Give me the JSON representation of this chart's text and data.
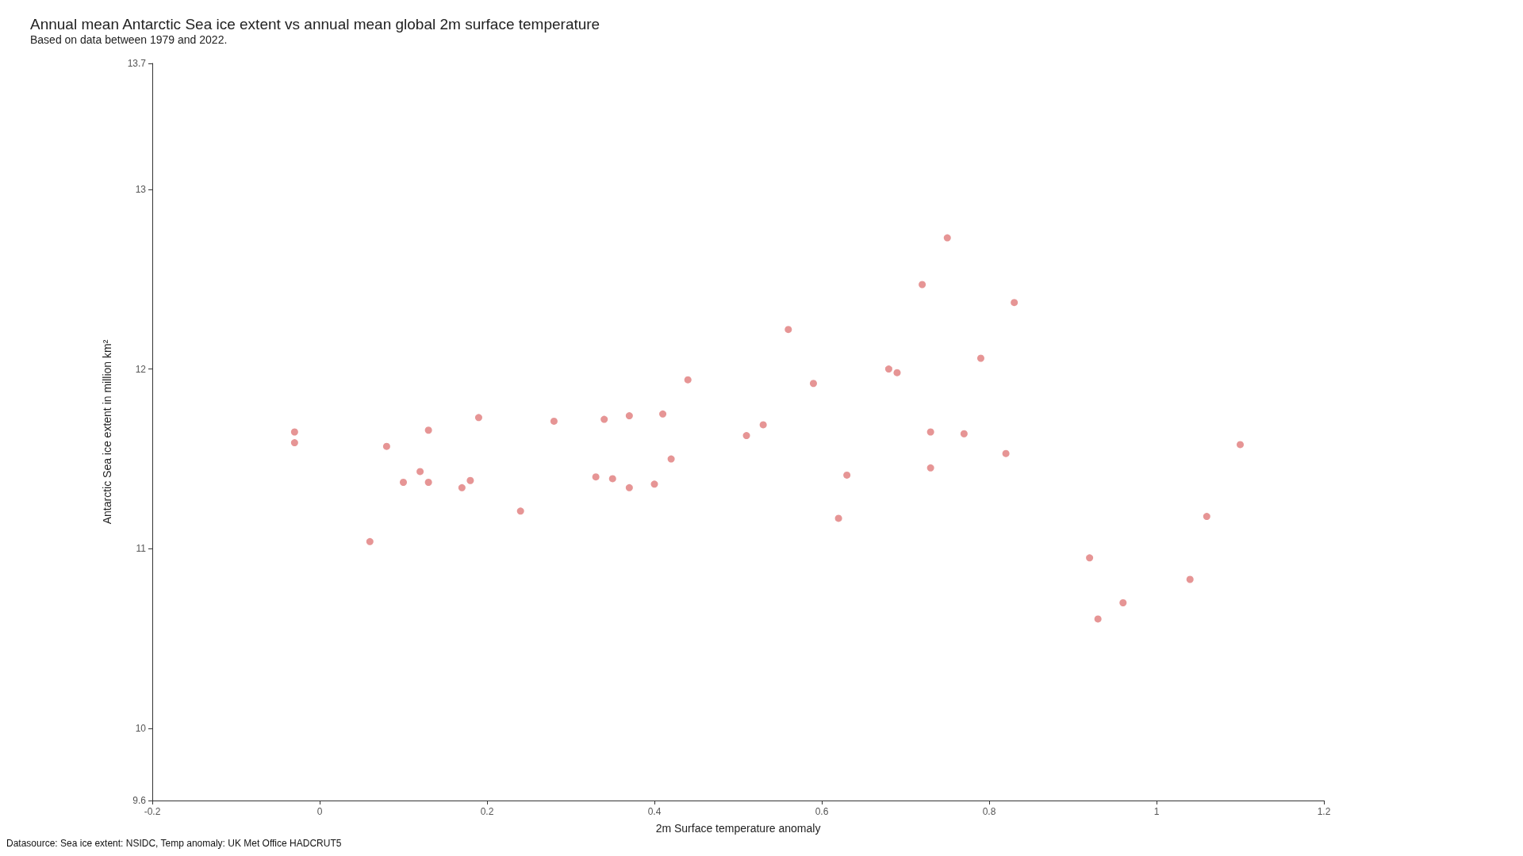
{
  "chart_data": {
    "type": "scatter",
    "title": "Annual mean Antarctic Sea ice extent vs annual mean global 2m surface temperature",
    "subtitle": "Based on data between 1979 and 2022.",
    "xlabel": "2m Surface temperature anomaly",
    "ylabel": "Antarctic Sea ice extent in million km²",
    "annotations": [
      "Datasource: Sea ice extent: NSIDC, Temp anomaly: UK Met Office HADCRUT5"
    ],
    "x": [
      -0.03,
      -0.03,
      0.06,
      0.08,
      0.1,
      0.12,
      0.13,
      0.13,
      0.17,
      0.18,
      0.19,
      0.24,
      0.28,
      0.33,
      0.34,
      0.35,
      0.37,
      0.37,
      0.4,
      0.41,
      0.42,
      0.44,
      0.51,
      0.53,
      0.56,
      0.59,
      0.62,
      0.63,
      0.68,
      0.69,
      0.72,
      0.73,
      0.73,
      0.75,
      0.77,
      0.79,
      0.82,
      0.83,
      0.92,
      0.93,
      0.96,
      1.04,
      1.06,
      1.1
    ],
    "series": [
      {
        "color": "#e07b7b",
        "values": [
          11.65,
          11.59,
          11.04,
          11.57,
          11.37,
          11.43,
          11.66,
          11.37,
          11.34,
          11.38,
          11.73,
          11.21,
          11.71,
          11.4,
          11.72,
          11.39,
          11.74,
          11.34,
          11.36,
          11.75,
          11.5,
          11.94,
          11.63,
          11.69,
          12.22,
          11.92,
          11.17,
          11.41,
          12.0,
          11.98,
          12.47,
          11.65,
          11.45,
          12.73,
          11.64,
          12.06,
          11.53,
          12.37,
          10.95,
          10.61,
          10.7,
          10.83,
          11.18,
          11.58
        ]
      }
    ],
    "xlim": [
      -0.2,
      1.2
    ],
    "xticks": [
      -0.2,
      0,
      0.2,
      0.4,
      0.6,
      0.8,
      1,
      1.2
    ],
    "ylim": [
      9.6,
      13.7
    ],
    "yticks": [
      9.6,
      10,
      11,
      12,
      13,
      13.7
    ],
    "marker": "circle",
    "grid": false
  }
}
